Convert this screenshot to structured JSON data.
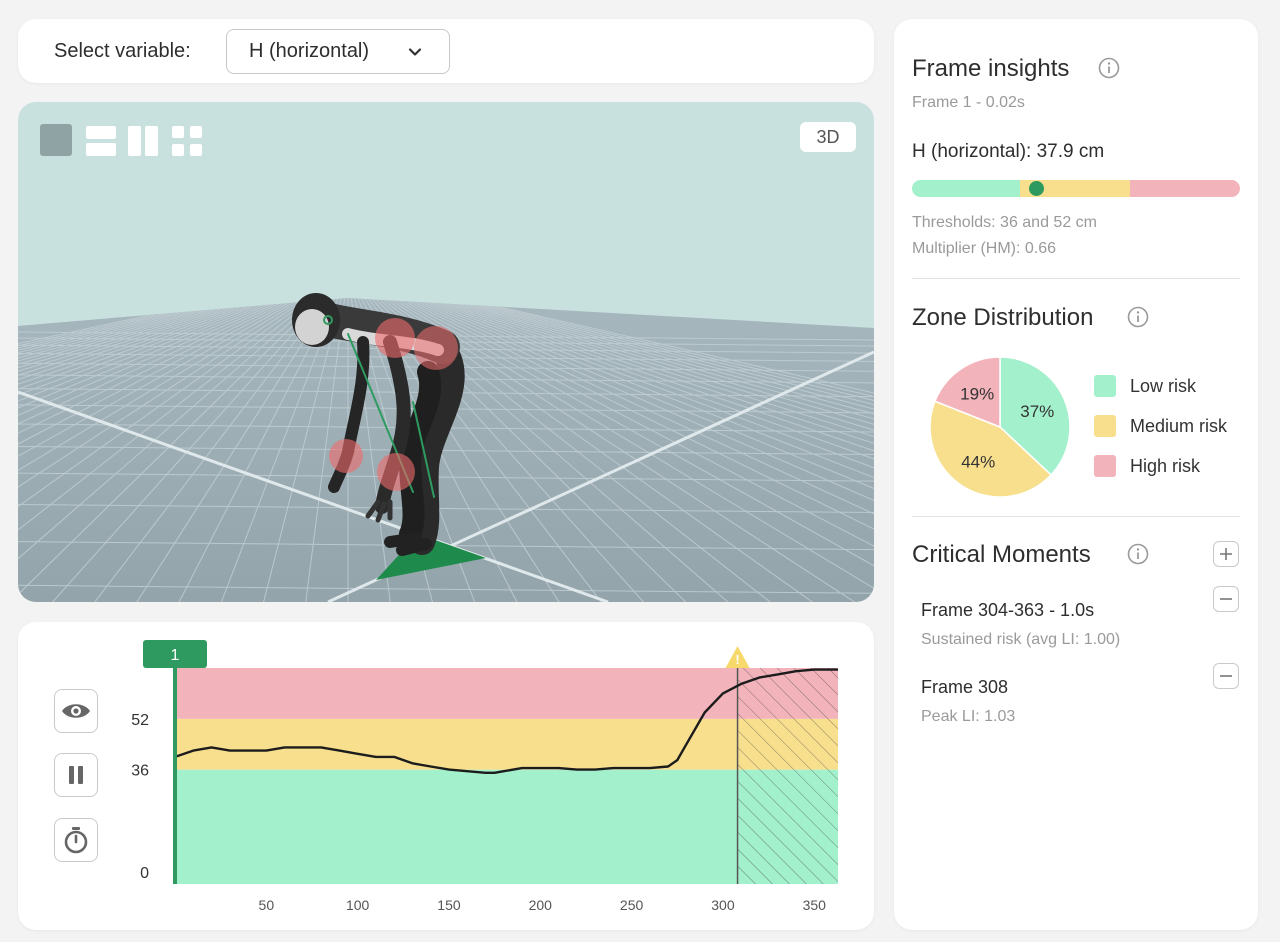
{
  "selector": {
    "label": "Select variable:",
    "selected": "H (horizontal)"
  },
  "view": {
    "mode_badge": "3D"
  },
  "timeline": {
    "current_frame_label": "1",
    "y_ticks": [
      "52",
      "36",
      "0"
    ],
    "x_ticks": [
      "50",
      "100",
      "150",
      "200",
      "250",
      "300",
      "350"
    ],
    "warning_marker": "!"
  },
  "insights": {
    "title": "Frame insights",
    "frame": "Frame 1 - 0.02s",
    "variable_value": "H (horizontal): 37.9 cm",
    "value_marker_fraction": 0.38,
    "thresholds": "Thresholds: 36 and 52 cm",
    "multiplier": "Multiplier (HM): 0.66"
  },
  "zone_distribution": {
    "title": "Zone Distribution",
    "slices": [
      {
        "label": "Low risk",
        "percent": 37,
        "text": "37%",
        "color": "#a3f0cc"
      },
      {
        "label": "Medium risk",
        "percent": 44,
        "text": "44%",
        "color": "#f7df8e"
      },
      {
        "label": "High risk",
        "percent": 19,
        "text": "19%",
        "color": "#f3b3ba"
      }
    ]
  },
  "critical_moments": {
    "title": "Critical Moments",
    "items": [
      {
        "title": "Frame 304-363 - 1.0s",
        "subtitle": "Sustained risk (avg LI: 1.00)"
      },
      {
        "title": "Frame 308",
        "subtitle": "Peak LI: 1.03"
      }
    ]
  },
  "colors": {
    "low": "#a3f0cc",
    "medium": "#f7df8e",
    "high": "#f3b3ba",
    "accent": "#2e9a60"
  },
  "chart_data": {
    "type": "line",
    "title": "",
    "xlabel": "",
    "ylabel": "",
    "xlim": [
      0,
      363
    ],
    "y_tick_values": [
      0,
      36,
      52
    ],
    "zones": [
      {
        "name": "Low risk",
        "from": 0,
        "to": 36
      },
      {
        "name": "Medium risk",
        "from": 36,
        "to": 52
      },
      {
        "name": "High risk",
        "from": 52,
        "to": 68
      }
    ],
    "highlight_range": [
      308,
      363
    ],
    "series": [
      {
        "x": [
          0,
          10,
          20,
          30,
          40,
          50,
          60,
          70,
          80,
          90,
          100,
          110,
          120,
          130,
          140,
          150,
          160,
          170,
          175,
          180,
          190,
          200,
          210,
          220,
          230,
          240,
          250,
          260,
          270,
          275,
          280,
          290,
          300,
          310,
          320,
          330,
          340,
          350,
          363
        ],
        "y": [
          40,
          42,
          43,
          42,
          42,
          42,
          43,
          43,
          43,
          42,
          41,
          40,
          40,
          38,
          37,
          36,
          35.5,
          35,
          35,
          35.5,
          36.5,
          36.5,
          36.5,
          36,
          36,
          36.5,
          36.5,
          36.5,
          37,
          39,
          44,
          54,
          60,
          63,
          65,
          66,
          67,
          67.5,
          67.5
        ]
      }
    ]
  }
}
